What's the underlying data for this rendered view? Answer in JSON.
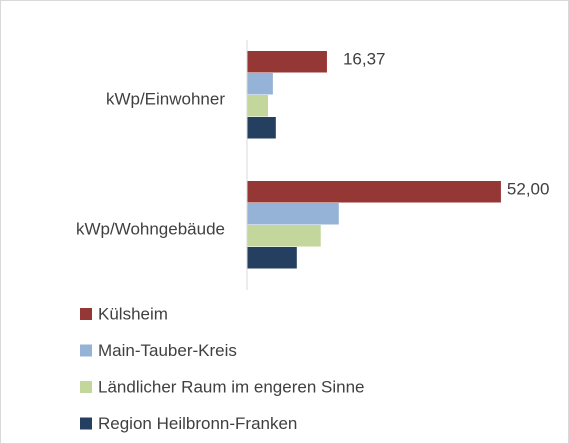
{
  "chart_data": {
    "type": "bar",
    "orientation": "horizontal",
    "categories": [
      "kWp/Einwohner",
      "kWp/Wohngebäude"
    ],
    "series": [
      {
        "name": "Külsheim",
        "color": "#953735",
        "values": [
          16.37,
          52.0
        ],
        "value_labels": [
          "16,37",
          "52,00"
        ]
      },
      {
        "name": "Main-Tauber-Kreis",
        "color": "#95b3d7",
        "values": [
          5.3,
          18.8
        ]
      },
      {
        "name": "Ländlicher Raum im engeren Sinne",
        "color": "#c3d69b",
        "values": [
          4.3,
          15.1
        ]
      },
      {
        "name": "Region Heilbronn-Franken",
        "color": "#243f60",
        "values": [
          5.9,
          10.2
        ]
      }
    ],
    "xlim": [
      0,
      60
    ],
    "legend": "bottom"
  }
}
